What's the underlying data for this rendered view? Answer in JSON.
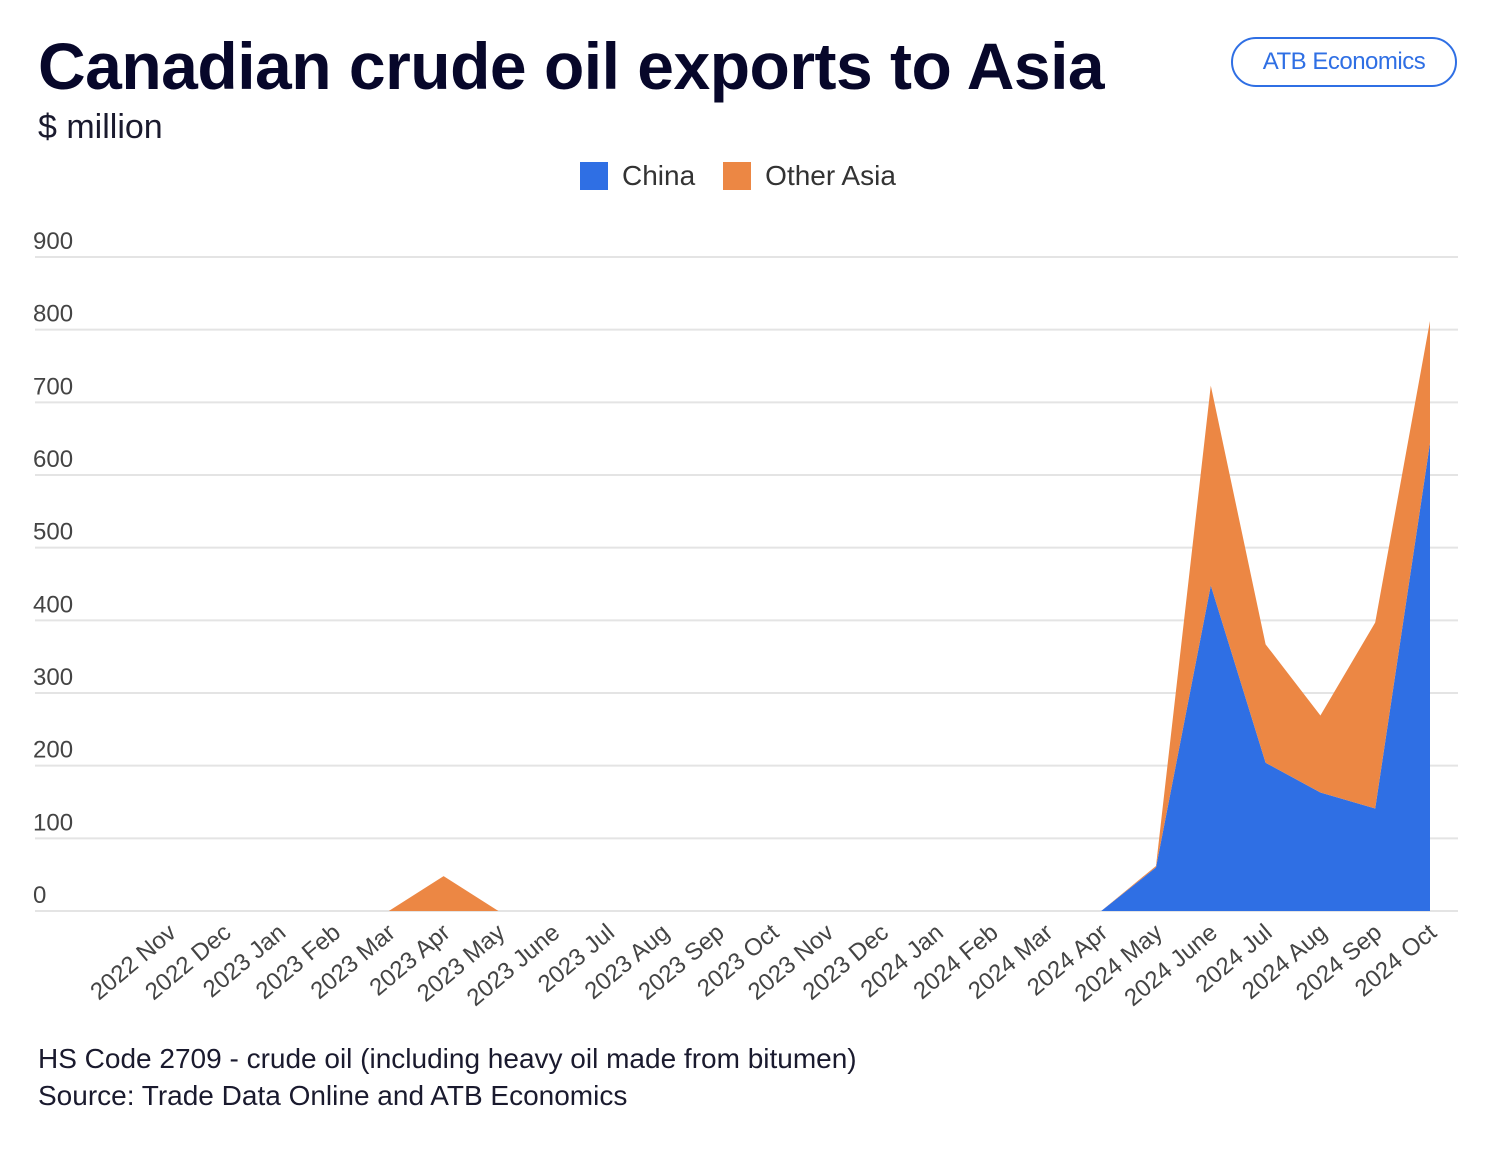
{
  "chart_data": {
    "type": "area",
    "stacked": true,
    "title": "Canadian crude oil exports to Asia",
    "subtitle": "$ million",
    "categories": [
      "2022 Nov",
      "2022 Dec",
      "2023 Jan",
      "2023 Feb",
      "2023 Mar",
      "2023 Apr",
      "2023 May",
      "2023 June",
      "2023 Jul",
      "2023 Aug",
      "2023 Sep",
      "2023 Oct",
      "2023 Nov",
      "2023 Dec",
      "2024 Jan",
      "2024 Feb",
      "2024 Mar",
      "2024 Apr",
      "2024 May",
      "2024 June",
      "2024 Jul",
      "2024 Aug",
      "2024 Sep",
      "2024 Oct"
    ],
    "series": [
      {
        "name": "China",
        "color": "#2f6fe4",
        "values": [
          0,
          0,
          0,
          0,
          0,
          0,
          0,
          0,
          0,
          0,
          0,
          0,
          0,
          0,
          0,
          0,
          0,
          0,
          60,
          448,
          204,
          163,
          141,
          644
        ]
      },
      {
        "name": "Other Asia",
        "color": "#ec8744",
        "values": [
          0,
          0,
          0,
          0,
          0,
          48,
          0,
          0,
          0,
          0,
          0,
          0,
          0,
          0,
          0,
          0,
          0,
          0,
          2,
          275,
          163,
          106,
          256,
          168
        ]
      }
    ],
    "ylim": [
      0,
      900
    ],
    "yticks": [
      0,
      100,
      200,
      300,
      400,
      500,
      600,
      700,
      800,
      900
    ],
    "grid": true,
    "legend": "top-center",
    "xlabel": "",
    "ylabel": ""
  },
  "badge": "ATB Economics",
  "notes": [
    "HS Code 2709 - crude oil (including heavy oil made from bitumen)",
    "Source: Trade Data Online and ATB Economics"
  ]
}
